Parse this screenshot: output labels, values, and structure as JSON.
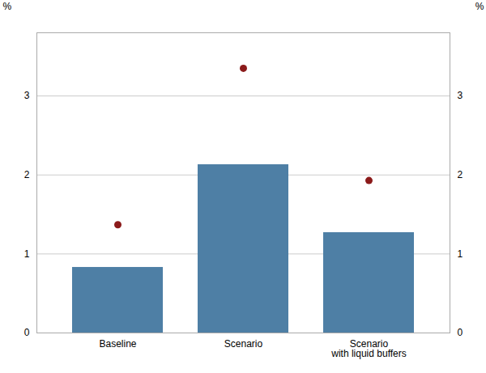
{
  "chart_data": {
    "type": "bar",
    "categories": [
      "Baseline",
      "Scenario",
      "Scenario\nwith liquid buffers"
    ],
    "series": [
      {
        "type": "bar",
        "color": "#4e7fa5",
        "values": [
          0.83,
          2.13,
          1.27
        ]
      },
      {
        "type": "scatter",
        "color": "#8b1a1a",
        "values": [
          1.37,
          3.35,
          1.93
        ]
      }
    ],
    "ylim": [
      0,
      3.8
    ],
    "yticks": [
      0,
      1,
      2,
      3
    ],
    "y2lim": [
      0,
      3.8
    ],
    "y2ticks": [
      0,
      1,
      2,
      3
    ],
    "ylabel": "%",
    "y2label": "%",
    "grid": true
  }
}
